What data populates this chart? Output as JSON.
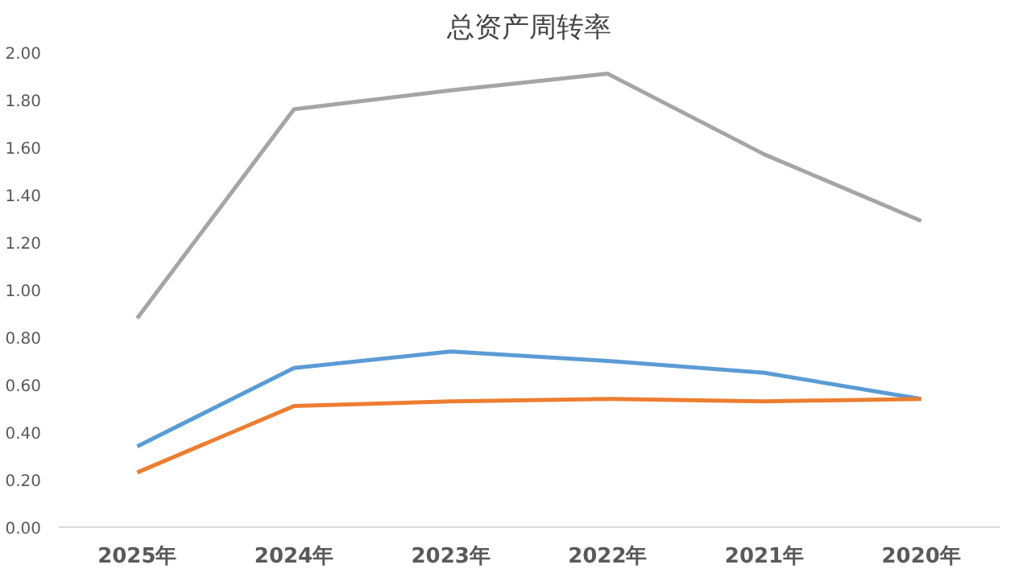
{
  "chart_data": {
    "type": "line",
    "title": "总资产周转率",
    "categories": [
      "2025年",
      "2024年",
      "2023年",
      "2022年",
      "2021年",
      "2020年"
    ],
    "series": [
      {
        "color": "#a5a5a5",
        "values": [
          0.88,
          1.76,
          1.84,
          1.91,
          1.57,
          1.29
        ]
      },
      {
        "color": "#5b9bd5",
        "values": [
          0.34,
          0.67,
          0.74,
          0.7,
          0.65,
          0.54
        ]
      },
      {
        "color": "#ed7d31",
        "values": [
          0.23,
          0.51,
          0.53,
          0.54,
          0.53,
          0.54
        ]
      }
    ],
    "ylim": [
      0,
      2
    ],
    "yticks": [
      {
        "value": 0,
        "label": "0.00"
      },
      {
        "value": 0.2,
        "label": "0.20"
      },
      {
        "value": 0.4,
        "label": "0.40"
      },
      {
        "value": 0.6,
        "label": "0.60"
      },
      {
        "value": 0.8,
        "label": "0.80"
      },
      {
        "value": 1,
        "label": "1.00"
      },
      {
        "value": 1.2,
        "label": "1.20"
      },
      {
        "value": 1.4,
        "label": "1.40"
      },
      {
        "value": 1.6,
        "label": "1.60"
      },
      {
        "value": 1.8,
        "label": "1.80"
      },
      {
        "value": 2,
        "label": "2.00"
      }
    ],
    "grid": false,
    "marker": "none",
    "line_style": "solid"
  }
}
